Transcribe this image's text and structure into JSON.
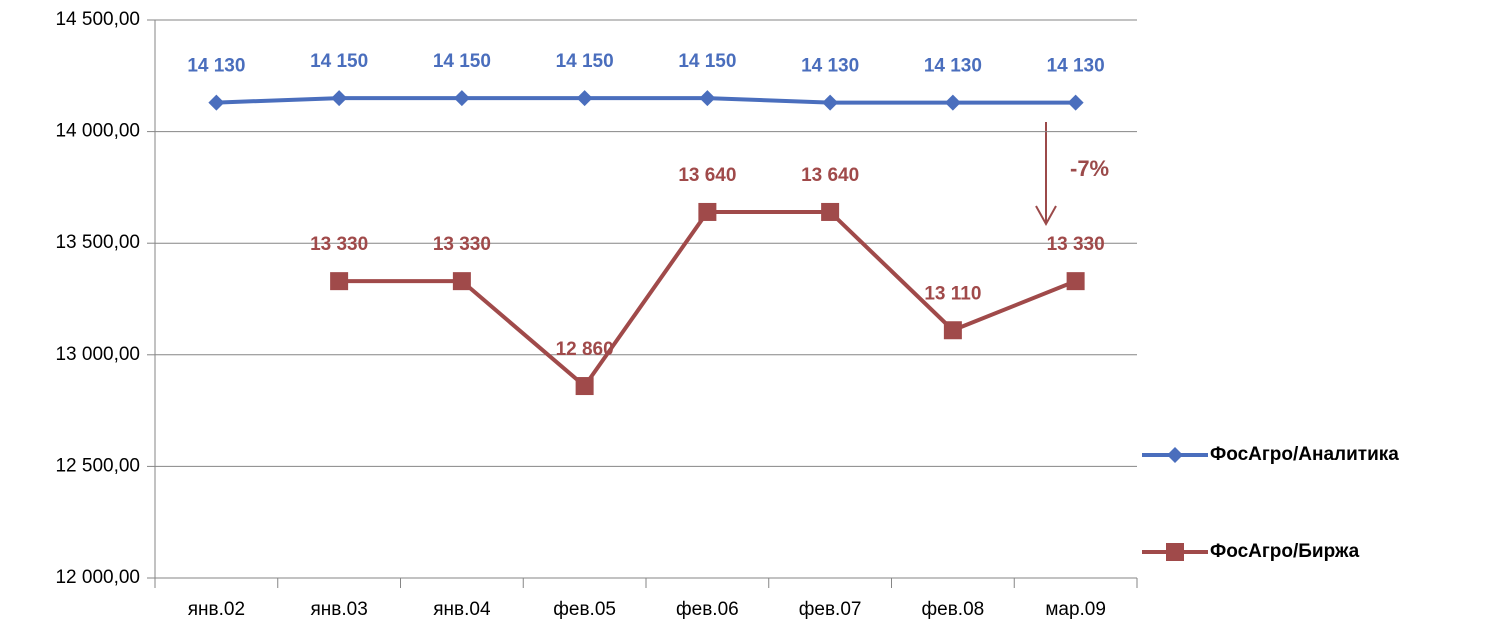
{
  "chart_data": {
    "type": "line",
    "categories": [
      "янв.02",
      "янв.03",
      "янв.04",
      "фев.05",
      "фев.06",
      "фев.07",
      "фев.08",
      "мар.09"
    ],
    "series": [
      {
        "name": "ФосАгро/Аналитика",
        "color": "#4a6ebd",
        "marker": "diamond",
        "values": [
          14130,
          14150,
          14150,
          14150,
          14150,
          14130,
          14130,
          14130
        ],
        "value_labels": [
          "14 130",
          "14 150",
          "14 150",
          "14 150",
          "14 150",
          "14 130",
          "14 130",
          "14 130"
        ]
      },
      {
        "name": "ФосАгро/Биржа",
        "color": "#a04a4a",
        "marker": "square",
        "values": [
          null,
          13330,
          13330,
          12860,
          13640,
          13640,
          13110,
          13330
        ],
        "value_labels": [
          null,
          "13 330",
          "13 330",
          "12 860",
          "13 640",
          "13 640",
          "13 110",
          "13 330"
        ]
      }
    ],
    "ylim": [
      12000,
      14500
    ],
    "yticks": [
      {
        "value": 12000,
        "label": "12 000,00"
      },
      {
        "value": 12500,
        "label": "12 500,00"
      },
      {
        "value": 13000,
        "label": "13 000,00"
      },
      {
        "value": 13500,
        "label": "13 500,00"
      },
      {
        "value": 14000,
        "label": "14 000,00"
      },
      {
        "value": 14500,
        "label": "14 500,00"
      }
    ],
    "grid": true,
    "legend": "right",
    "annotation": "-7%"
  }
}
